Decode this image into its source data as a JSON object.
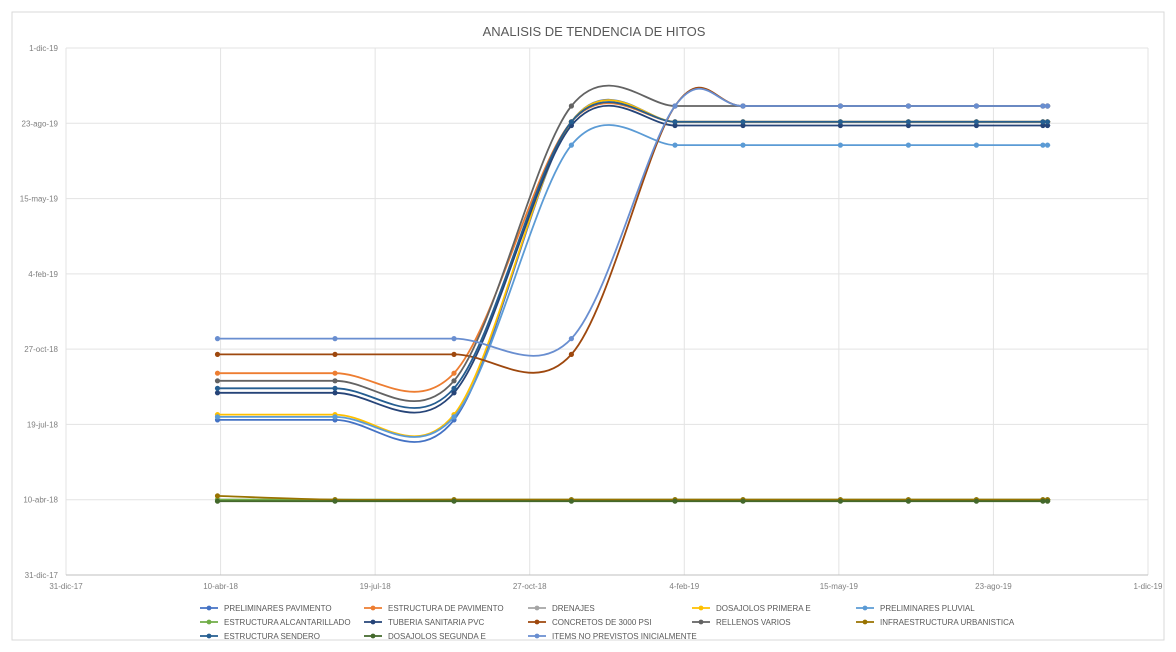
{
  "chart_data": {
    "type": "line",
    "title": "ANALISIS DE TENDENCIA DE HITOS",
    "xlabel": "",
    "ylabel": "",
    "x_ticks": [
      "31-dic-17",
      "10-abr-18",
      "19-jul-18",
      "27-oct-18",
      "4-feb-19",
      "15-may-19",
      "23-ago-19",
      "1-dic-19"
    ],
    "y_ticks": [
      "31-dic-17",
      "10-abr-18",
      "19-jul-18",
      "27-oct-18",
      "4-feb-19",
      "15-may-19",
      "23-ago-19",
      "1-dic-19"
    ],
    "xlim": [
      "2017-12-31",
      "2019-12-01"
    ],
    "ylim": [
      "2017-12-31",
      "2019-12-01"
    ],
    "grid": true,
    "legend_position": "bottom",
    "smooth": true,
    "x": [
      "2018-04-08",
      "2018-06-23",
      "2018-09-08",
      "2018-11-23",
      "2019-01-29",
      "2019-03-14",
      "2019-05-16",
      "2019-06-29",
      "2019-08-12",
      "2019-09-24",
      "2019-09-27"
    ],
    "series": [
      {
        "name": "PRELIMINARES PAVIMENTO",
        "color": "#4472C4",
        "values": [
          "2018-07-25",
          "2018-07-25",
          "2018-07-25",
          "2019-08-25",
          "2019-08-25",
          "2019-08-25",
          "2019-08-25",
          "2019-08-25",
          "2019-08-25",
          "2019-08-25",
          "2019-08-25"
        ]
      },
      {
        "name": "ESTRUCTURA DE PAVIMENTO",
        "color": "#ED7D31",
        "values": [
          "2018-09-25",
          "2018-09-25",
          "2018-09-25",
          "2019-08-25",
          "2019-08-25",
          "2019-08-25",
          "2019-08-25",
          "2019-08-25",
          "2019-08-25",
          "2019-08-25",
          "2019-08-25"
        ]
      },
      {
        "name": "DRENAJES",
        "color": "#A5A5A5",
        "values": [
          "2018-04-10",
          "2018-04-10",
          "2018-04-10",
          "2018-04-10",
          "2018-04-10",
          "2018-04-10",
          "2018-04-10",
          "2018-04-10",
          "2018-04-10",
          "2018-04-10",
          "2018-04-10"
        ]
      },
      {
        "name": "DOSAJOLOS PRIMERA E",
        "color": "#FFC000",
        "values": [
          "2018-08-01",
          "2018-08-01",
          "2018-08-01",
          "2019-08-25",
          "2019-08-25",
          "2019-08-25",
          "2019-08-25",
          "2019-08-25",
          "2019-08-25",
          "2019-08-25",
          "2019-08-25"
        ]
      },
      {
        "name": "PRELIMINARES PLUVIAL",
        "color": "#5B9BD5",
        "values": [
          "2018-07-29",
          "2018-07-29",
          "2018-07-29",
          "2019-07-25",
          "2019-07-25",
          "2019-07-25",
          "2019-07-25",
          "2019-07-25",
          "2019-07-25",
          "2019-07-25",
          "2019-07-25"
        ]
      },
      {
        "name": "ESTRUCTURA ALCANTARILLADO",
        "color": "#70AD47",
        "values": [
          "2018-04-10",
          "2018-04-10",
          "2018-04-10",
          "2018-04-10",
          "2018-04-10",
          "2018-04-10",
          "2018-04-10",
          "2018-04-10",
          "2018-04-10",
          "2018-04-10",
          "2018-04-10"
        ]
      },
      {
        "name": "TUBERIA SANITARIA PVC",
        "color": "#264478",
        "values": [
          "2018-08-30",
          "2018-08-30",
          "2018-08-30",
          "2019-08-20",
          "2019-08-20",
          "2019-08-20",
          "2019-08-20",
          "2019-08-20",
          "2019-08-20",
          "2019-08-20",
          "2019-08-20"
        ]
      },
      {
        "name": "CONCRETOS DE 3000 PSI",
        "color": "#9E480E",
        "values": [
          "2018-10-20",
          "2018-10-20",
          "2018-10-20",
          "2018-10-20",
          "2019-09-15",
          "2019-09-15",
          "2019-09-15",
          "2019-09-15",
          "2019-09-15",
          "2019-09-15",
          "2019-09-15"
        ]
      },
      {
        "name": "RELLENOS VARIOS",
        "color": "#636363",
        "values": [
          "2018-09-15",
          "2018-09-15",
          "2018-09-15",
          "2019-09-15",
          "2019-09-15",
          "2019-09-15",
          "2019-09-15",
          "2019-09-15",
          "2019-09-15",
          "2019-09-15",
          "2019-09-15"
        ]
      },
      {
        "name": "INFRAESTRUCTURA URBANISTICA",
        "color": "#997300",
        "values": [
          "2018-04-15",
          "2018-04-10",
          "2018-04-10",
          "2018-04-10",
          "2018-04-10",
          "2018-04-10",
          "2018-04-10",
          "2018-04-10",
          "2018-04-10",
          "2018-04-10",
          "2018-04-10"
        ]
      },
      {
        "name": "ESTRUCTURA SENDERO",
        "color": "#255E91",
        "values": [
          "2018-09-05",
          "2018-09-05",
          "2018-09-05",
          "2019-08-25",
          "2019-08-25",
          "2019-08-25",
          "2019-08-25",
          "2019-08-25",
          "2019-08-25",
          "2019-08-25",
          "2019-08-25"
        ]
      },
      {
        "name": "DOSAJOLOS SEGUNDA E",
        "color": "#43682B",
        "values": [
          "2018-04-08",
          "2018-04-08",
          "2018-04-08",
          "2018-04-08",
          "2018-04-08",
          "2018-04-08",
          "2018-04-08",
          "2018-04-08",
          "2018-04-08",
          "2018-04-08",
          "2018-04-08"
        ]
      },
      {
        "name": "ITEMS NO PREVISTOS INICIALMENTE",
        "color": "#698ED0",
        "values": [
          "2018-11-10",
          "2018-11-10",
          "2018-11-10",
          "2018-11-10",
          "2019-09-15",
          "2019-09-15",
          "2019-09-15",
          "2019-09-15",
          "2019-09-15",
          "2019-09-15",
          "2019-09-15"
        ]
      }
    ]
  }
}
